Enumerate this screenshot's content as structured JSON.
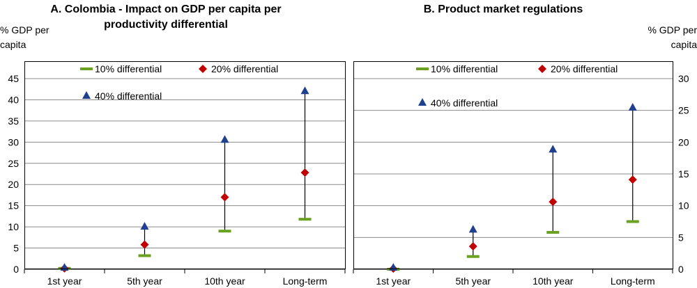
{
  "chart_data": [
    {
      "type": "scatter",
      "title_lines": [
        "A. Colombia - Impact on GDP per capita per",
        "productivity differential"
      ],
      "ylabel_lines": [
        "% GDP per",
        "capita"
      ],
      "y_axis_side": "left",
      "ylim": [
        0,
        45
      ],
      "yticks": [
        0,
        5,
        10,
        15,
        20,
        25,
        30,
        35,
        40,
        45
      ],
      "categories": [
        "1st year",
        "5th year",
        "10th year",
        "Long-term"
      ],
      "grid": true,
      "legend_position": "top",
      "series": [
        {
          "name": "10% differential",
          "marker": "dash",
          "color": "#6aa121",
          "values": [
            0.2,
            3.2,
            9.0,
            11.8
          ]
        },
        {
          "name": "20% differential",
          "marker": "diamond",
          "color": "#c00000",
          "values": [
            0.2,
            5.8,
            17.0,
            22.8
          ]
        },
        {
          "name": "40% differential",
          "marker": "triangle",
          "color": "#1f3f8f",
          "values": [
            0.3,
            10.0,
            30.5,
            42.0
          ]
        }
      ]
    },
    {
      "type": "scatter",
      "title_lines": [
        "B. Product market regulations"
      ],
      "ylabel_lines": [
        "% GDP per",
        "capita"
      ],
      "y_axis_side": "right",
      "ylim": [
        0,
        30
      ],
      "yticks": [
        0,
        5,
        10,
        15,
        20,
        25,
        30
      ],
      "categories": [
        "1st year",
        "5th year",
        "10th year",
        "Long-term"
      ],
      "grid": true,
      "legend_position": "top",
      "series": [
        {
          "name": "10% differential",
          "marker": "dash",
          "color": "#6aa121",
          "values": [
            0.0,
            2.0,
            5.8,
            7.5
          ]
        },
        {
          "name": "20% differential",
          "marker": "diamond",
          "color": "#c00000",
          "values": [
            0.1,
            3.6,
            10.6,
            14.1
          ]
        },
        {
          "name": "40% differential",
          "marker": "triangle",
          "color": "#1f3f8f",
          "values": [
            0.2,
            6.2,
            18.8,
            25.4
          ]
        }
      ]
    }
  ]
}
